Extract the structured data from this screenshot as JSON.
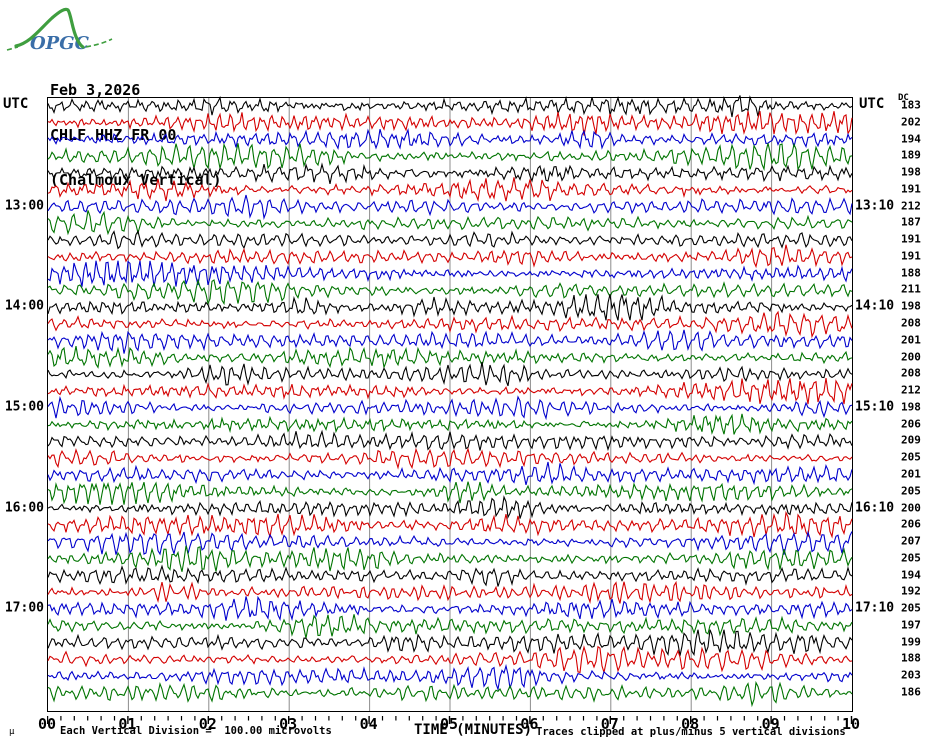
{
  "logo": {
    "text": "OPGC",
    "curve_color": "#3f9e3f",
    "text_color": "#3a6ea8"
  },
  "header": {
    "date": "Feb 3,2026",
    "channel": "CHLF HHZ FR 00",
    "station": "(Chalmoux Vertical)"
  },
  "axis": {
    "left_title": "UTC",
    "right_title": "UTC",
    "dc_header": "DC",
    "xlabel": "TIME (MINUTES)",
    "x_tick_labels": [
      "00",
      "01",
      "02",
      "03",
      "04",
      "05",
      "06",
      "07",
      "08",
      "09",
      "10"
    ]
  },
  "footer": {
    "unit_glyph": "µ",
    "division_note": "Each Vertical Division =  100.00 microvolts",
    "clip_note": "Traces clipped at plus/minus 5 vertical divisions"
  },
  "chart_data": {
    "type": "line",
    "subtype": "helicorder-seismogram",
    "title": "CHLF HHZ FR 00 (Chalmoux Vertical) Feb 3,2026",
    "xlabel": "TIME (MINUTES)",
    "x_range_minutes": [
      0,
      10
    ],
    "minutes_per_row": 10,
    "minor_ticks_per_minute": 6,
    "rows": 36,
    "row_colors_cycle": [
      "#000000",
      "#d40000",
      "#0000cc",
      "#007400"
    ],
    "grid_color": "#8c8c8c",
    "grid_on": true,
    "hour_labels": [
      {
        "row": 6,
        "left": "13:00",
        "right": "13:10"
      },
      {
        "row": 12,
        "left": "14:00",
        "right": "14:10"
      },
      {
        "row": 18,
        "left": "15:00",
        "right": "15:10"
      },
      {
        "row": 24,
        "left": "16:00",
        "right": "16:10"
      },
      {
        "row": 30,
        "left": "17:00",
        "right": "17:10"
      }
    ],
    "dc_values": [
      183,
      202,
      194,
      189,
      198,
      191,
      212,
      187,
      191,
      191,
      188,
      211,
      198,
      208,
      201,
      200,
      208,
      212,
      198,
      206,
      209,
      205,
      201,
      205,
      200,
      206,
      207,
      205,
      194,
      192,
      205,
      197,
      199,
      188,
      203,
      186
    ],
    "division_microvolts": 100.0,
    "clip_divisions": 5,
    "waveform_description": "continuous microseismic background noise on every row, typical peak amplitude about half a vertical division with intermittent bursts"
  }
}
